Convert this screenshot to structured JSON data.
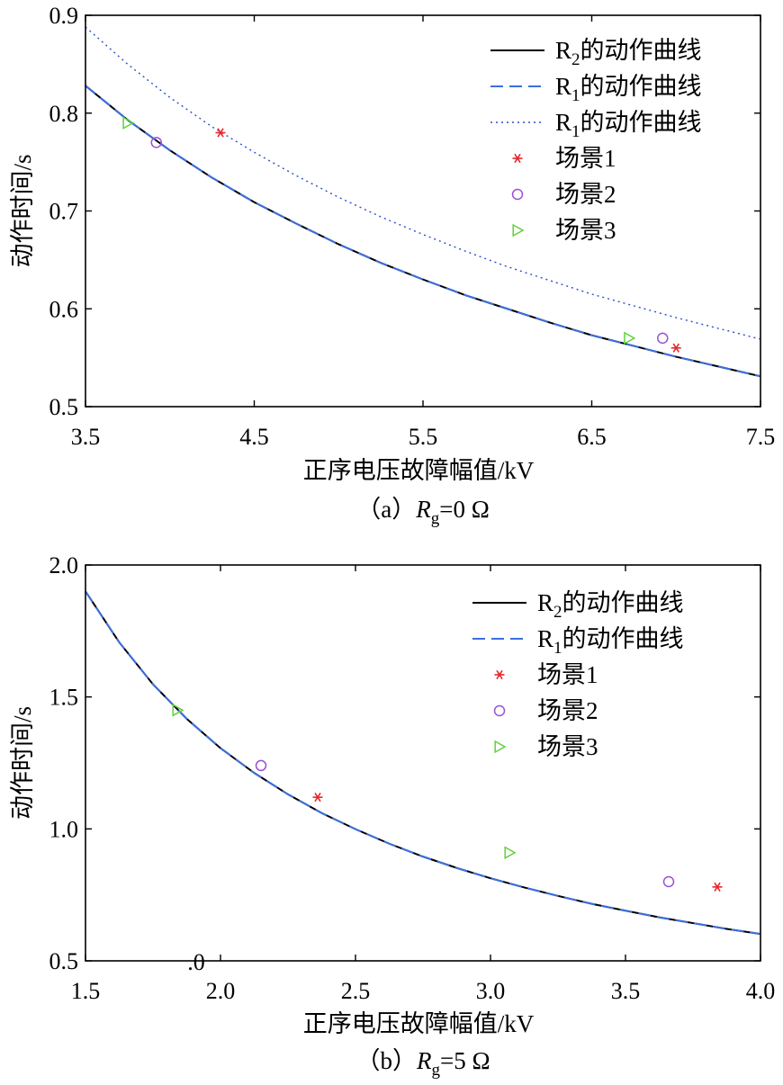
{
  "chart_data": [
    {
      "type": "line",
      "caption": {
        "prefix": "（a）",
        "var": "R",
        "sub": "g",
        "rest": "=0 Ω"
      },
      "xlabel": "正序电压故障幅值/kV",
      "ylabel": "动作时间/s",
      "xlim": [
        3.5,
        7.5
      ],
      "ylim": [
        0.5,
        0.9
      ],
      "xticks": [
        {
          "value": 3.5,
          "label": "3.5"
        },
        {
          "value": 4.5,
          "label": "4.5"
        },
        {
          "value": 5.5,
          "label": "5.5"
        },
        {
          "value": 6.5,
          "label": "6.5"
        },
        {
          "value": 7.5,
          "label": "7.5"
        }
      ],
      "yticks": [
        {
          "value": 0.5,
          "label": "0.5"
        },
        {
          "value": 0.6,
          "label": "0.6"
        },
        {
          "value": 0.7,
          "label": "0.7"
        },
        {
          "value": 0.8,
          "label": "0.8"
        },
        {
          "value": 0.9,
          "label": "0.9"
        }
      ],
      "legend_position": "top-right",
      "series": [
        {
          "name": "R",
          "sub": "2",
          "suffix": "的动作曲线",
          "style": "solid",
          "color": "#000000",
          "x": [
            3.5,
            3.75,
            4.0,
            4.25,
            4.5,
            4.75,
            5.0,
            5.25,
            5.5,
            5.75,
            6.0,
            6.25,
            6.5,
            6.75,
            7.0,
            7.25,
            7.5
          ],
          "y": [
            0.828,
            0.793,
            0.762,
            0.734,
            0.709,
            0.687,
            0.666,
            0.647,
            0.63,
            0.614,
            0.6,
            0.586,
            0.573,
            0.562,
            0.551,
            0.541,
            0.531
          ]
        },
        {
          "name": "R",
          "sub": "1",
          "suffix": "的动作曲线",
          "style": "dashed",
          "color": "#3b6fe0",
          "x": [
            3.5,
            3.75,
            4.0,
            4.25,
            4.5,
            4.75,
            5.0,
            5.25,
            5.5,
            5.75,
            6.0,
            6.25,
            6.5,
            6.75,
            7.0,
            7.25,
            7.5
          ],
          "y": [
            0.828,
            0.793,
            0.762,
            0.734,
            0.709,
            0.687,
            0.666,
            0.647,
            0.63,
            0.614,
            0.6,
            0.586,
            0.573,
            0.562,
            0.551,
            0.541,
            0.531
          ]
        },
        {
          "name": "R",
          "sub": "1",
          "suffix": "的动作曲线",
          "style": "dotted",
          "color": "#2a4fc8",
          "x": [
            3.5,
            3.75,
            4.0,
            4.25,
            4.5,
            4.75,
            5.0,
            5.25,
            5.5,
            5.75,
            6.0,
            6.25,
            6.5,
            6.75,
            7.0,
            7.25,
            7.5
          ],
          "y": [
            0.888,
            0.85,
            0.816,
            0.786,
            0.76,
            0.736,
            0.714,
            0.694,
            0.676,
            0.659,
            0.643,
            0.629,
            0.615,
            0.603,
            0.591,
            0.58,
            0.569
          ]
        }
      ],
      "scatter": [
        {
          "name": "场景1",
          "marker": "star",
          "color": "#e8262b",
          "points": [
            [
              4.3,
              0.78
            ],
            [
              7.0,
              0.56
            ]
          ]
        },
        {
          "name": "场景2",
          "marker": "circle",
          "color": "#9b4fd6",
          "points": [
            [
              3.92,
              0.77
            ],
            [
              6.92,
              0.57
            ]
          ]
        },
        {
          "name": "场景3",
          "marker": "triangle",
          "color": "#5fd23a",
          "points": [
            [
              3.75,
              0.79
            ],
            [
              6.72,
              0.57
            ]
          ]
        }
      ]
    },
    {
      "type": "line",
      "caption": {
        "prefix": "（b）",
        "var": "R",
        "sub": "g",
        "rest": "=5 Ω"
      },
      "xlabel": "正序电压故障幅值/kV",
      "ylabel": "动作时间/s",
      "xlim": [
        1.5,
        4.0
      ],
      "ylim": [
        0.5,
        2.0
      ],
      "xticks": [
        {
          "value": 1.5,
          "label": "1.5"
        },
        {
          "value": 2.0,
          "label": "2.0"
        },
        {
          "value": 2.5,
          "label": "2.5"
        },
        {
          "value": 3.0,
          "label": "3.0"
        },
        {
          "value": 3.5,
          "label": "3.5"
        },
        {
          "value": 4.0,
          "label": "4.0"
        }
      ],
      "yticks": [
        {
          "value": 0.5,
          "label": "0.5"
        },
        {
          "value": 1.0,
          "label": "1.0"
        },
        {
          "value": 1.5,
          "label": "1.5"
        },
        {
          "value": 2.0,
          "label": "2.0"
        }
      ],
      "stray_text": {
        "text": ".0",
        "x": 1.91,
        "y": 0.5
      },
      "legend_position": "top-right",
      "series": [
        {
          "name": "R",
          "sub": "2",
          "suffix": "的动作曲线",
          "style": "solid",
          "color": "#000000",
          "x": [
            1.5,
            1.625,
            1.75,
            1.875,
            2.0,
            2.125,
            2.25,
            2.375,
            2.5,
            2.625,
            2.75,
            2.875,
            3.0,
            3.125,
            3.25,
            3.375,
            3.5,
            3.625,
            3.75,
            3.875,
            4.0
          ],
          "y": [
            1.9,
            1.707,
            1.548,
            1.417,
            1.306,
            1.212,
            1.131,
            1.06,
            0.999,
            0.944,
            0.895,
            0.852,
            0.813,
            0.778,
            0.746,
            0.716,
            0.69,
            0.665,
            0.643,
            0.621,
            0.602
          ]
        },
        {
          "name": "R",
          "sub": "1",
          "suffix": "的动作曲线",
          "style": "dashed",
          "color": "#3b6fe0",
          "x": [
            1.5,
            1.625,
            1.75,
            1.875,
            2.0,
            2.125,
            2.25,
            2.375,
            2.5,
            2.625,
            2.75,
            2.875,
            3.0,
            3.125,
            3.25,
            3.375,
            3.5,
            3.625,
            3.75,
            3.875,
            4.0
          ],
          "y": [
            1.9,
            1.707,
            1.548,
            1.417,
            1.306,
            1.212,
            1.131,
            1.06,
            0.999,
            0.944,
            0.895,
            0.852,
            0.813,
            0.778,
            0.746,
            0.716,
            0.69,
            0.665,
            0.643,
            0.621,
            0.602
          ]
        }
      ],
      "scatter": [
        {
          "name": "场景1",
          "marker": "star",
          "color": "#e8262b",
          "points": [
            [
              2.36,
              1.12
            ],
            [
              3.84,
              0.78
            ]
          ]
        },
        {
          "name": "场景2",
          "marker": "circle",
          "color": "#9b4fd6",
          "points": [
            [
              2.15,
              1.24
            ],
            [
              3.66,
              0.8
            ]
          ]
        },
        {
          "name": "场景3",
          "marker": "triangle",
          "color": "#5fd23a",
          "points": [
            [
              1.84,
              1.45
            ],
            [
              3.07,
              0.91
            ]
          ]
        }
      ]
    }
  ]
}
